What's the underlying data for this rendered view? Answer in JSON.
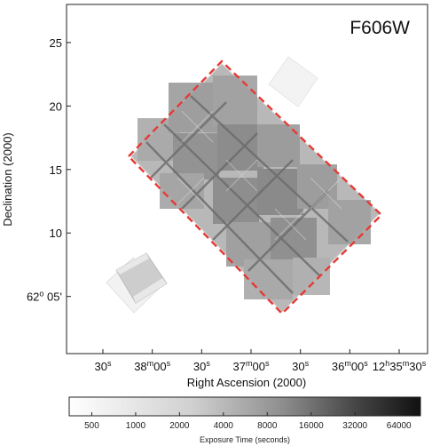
{
  "chart_data": {
    "type": "heatmap",
    "filter_label": "F606W",
    "xlabel": "Right Ascension (2000)",
    "ylabel": "Declination (2000)",
    "x_ticks": [
      {
        "pre": "30",
        "sup": "s",
        "post": "",
        "sup2": ""
      },
      {
        "pre": "38",
        "sup": "m",
        "post": "00",
        "sup2": "s"
      },
      {
        "pre": "30",
        "sup": "s",
        "post": "",
        "sup2": ""
      },
      {
        "pre": "37",
        "sup": "m",
        "post": "00",
        "sup2": "s"
      },
      {
        "pre": "30",
        "sup": "s",
        "post": "",
        "sup2": ""
      },
      {
        "pre": "36",
        "sup": "m",
        "post": "00",
        "sup2": "s"
      },
      {
        "pre": "12",
        "sup": "h",
        "post": "35",
        "sup2": "m",
        "post2": "30",
        "sup3": "s"
      }
    ],
    "y_ticks": [
      {
        "value": 25,
        "label": "25"
      },
      {
        "value": 20,
        "label": "20"
      },
      {
        "value": 15,
        "label": "15"
      },
      {
        "value": 10,
        "label": "10"
      },
      {
        "value": 5,
        "label": "62",
        "sup": "o",
        "post": " 05'"
      }
    ],
    "ylim": [
      0.5,
      28
    ],
    "colorbar": {
      "label": "Exposure Time (seconds)",
      "ticks": [
        "500",
        "1000",
        "2000",
        "4000",
        "8000",
        "16000",
        "32000",
        "64000"
      ],
      "scale": "log2",
      "range": [
        350,
        90000
      ]
    },
    "outline_color": "#e43a35"
  }
}
